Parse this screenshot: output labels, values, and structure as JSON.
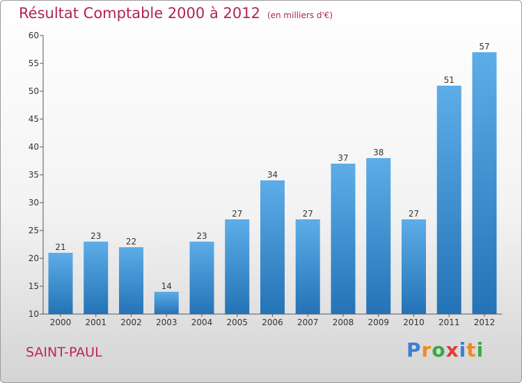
{
  "title": "Résultat Comptable 2000 à 2012",
  "subtitle": "(en milliers d'€)",
  "commune": "SAINT-PAUL",
  "logo": {
    "text": "Proxiti",
    "letter_colors": [
      "#3d7fd0",
      "#f08a1f",
      "#3aa845",
      "#e03b3b",
      "#3d7fd0",
      "#f08a1f",
      "#3aa845"
    ]
  },
  "colors": {
    "title": "#b0254d",
    "bar_top": "#5dade8",
    "bar_bottom": "#2473b6",
    "axis": "#555555",
    "label": "#333333"
  },
  "chart_data": {
    "type": "bar",
    "title": "Résultat Comptable 2000 à 2012",
    "subtitle": "(en milliers d'€)",
    "categories": [
      "2000",
      "2001",
      "2002",
      "2003",
      "2004",
      "2005",
      "2006",
      "2007",
      "2008",
      "2009",
      "2010",
      "2011",
      "2012"
    ],
    "values": [
      21,
      23,
      22,
      14,
      23,
      27,
      34,
      27,
      37,
      38,
      27,
      51,
      57
    ],
    "ylim": [
      10,
      60
    ],
    "yticks": [
      10,
      15,
      20,
      25,
      30,
      35,
      40,
      45,
      50,
      55,
      60
    ],
    "grid": false,
    "data_labels": true
  }
}
